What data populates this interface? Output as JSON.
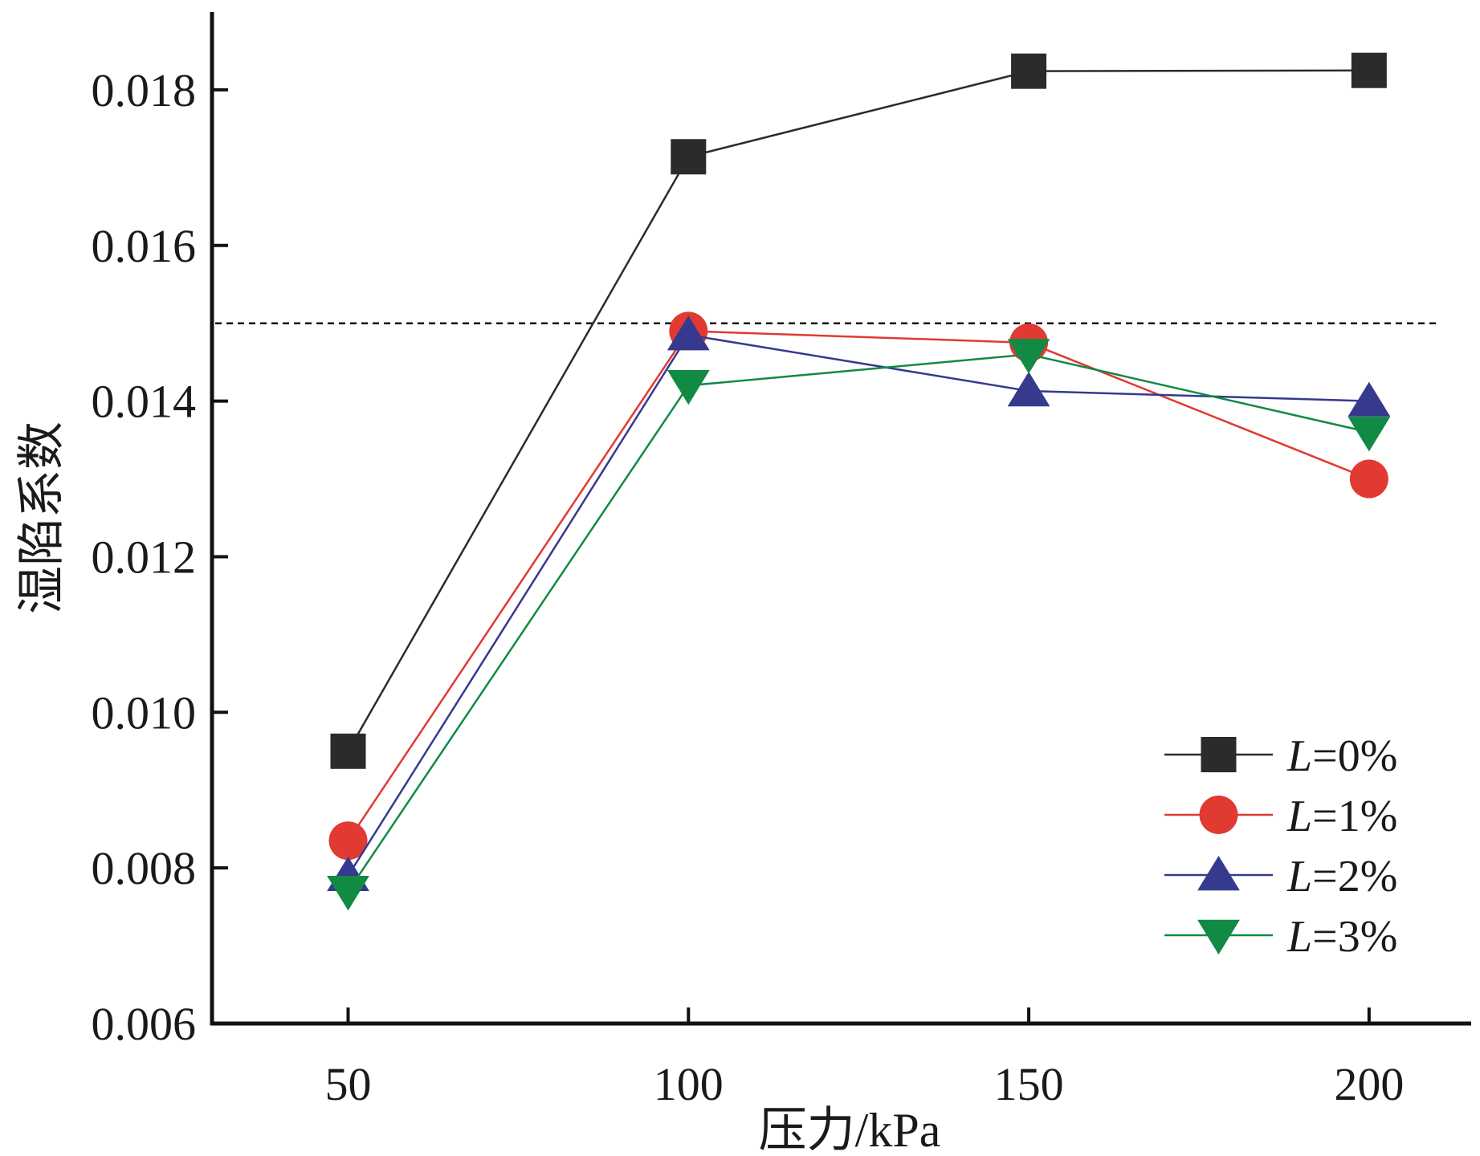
{
  "chart_data": {
    "type": "line",
    "title": "",
    "xlabel": "压力/kPa",
    "ylabel": "湿陷系数",
    "x": [
      50,
      100,
      150,
      200
    ],
    "x_tick_labels": [
      "50",
      "100",
      "150",
      "200"
    ],
    "xlim": [
      30,
      215
    ],
    "ylim": [
      0.006,
      0.019
    ],
    "y_ticks": [
      0.006,
      0.008,
      0.01,
      0.012,
      0.014,
      0.016,
      0.018
    ],
    "y_tick_labels": [
      "0.006",
      "0.008",
      "0.010",
      "0.012",
      "0.014",
      "0.016",
      "0.018"
    ],
    "reference_line": {
      "y": 0.015,
      "style": "dashed"
    },
    "grid": false,
    "legend_position": "bottom-right",
    "series": [
      {
        "name": "L=0%",
        "name_italic": "L",
        "name_rest": "=0%",
        "marker": "square",
        "color": "#2b2b2b",
        "values": [
          0.0095,
          0.01714,
          0.01824,
          0.01825
        ]
      },
      {
        "name": "L=1%",
        "name_italic": "L",
        "name_rest": "=1%",
        "marker": "circle",
        "color": "#e03a33",
        "values": [
          0.00835,
          0.0149,
          0.01475,
          0.013
        ]
      },
      {
        "name": "L=2%",
        "name_italic": "L",
        "name_rest": "=2%",
        "marker": "triangle-up",
        "color": "#353a8e",
        "values": [
          0.0079,
          0.01485,
          0.01413,
          0.014
        ]
      },
      {
        "name": "L=3%",
        "name_italic": "L",
        "name_rest": "=3%",
        "marker": "triangle-down",
        "color": "#118a44",
        "values": [
          0.0077,
          0.0142,
          0.0146,
          0.0136
        ]
      }
    ]
  }
}
